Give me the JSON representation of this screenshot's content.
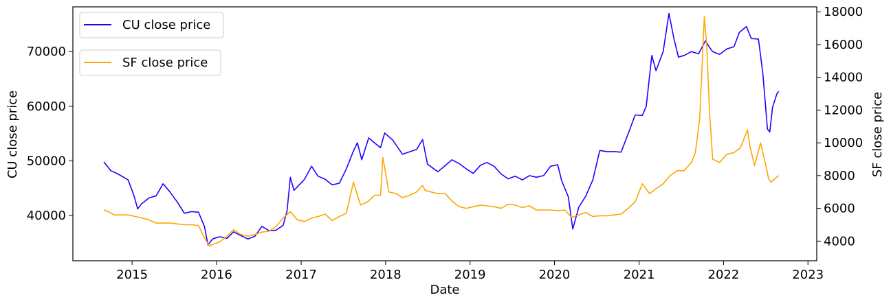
{
  "chart_data": {
    "type": "line",
    "xlabel": "Date",
    "ylabel_left": "CU close price",
    "ylabel_right": "SF close price",
    "x_range": [
      "2014-04-20",
      "2023-02-08"
    ],
    "ylim_left": [
      31700,
      78200
    ],
    "ylim_right": [
      2800,
      18300
    ],
    "x_ticks": [
      "2015",
      "2016",
      "2017",
      "2018",
      "2019",
      "2020",
      "2021",
      "2022",
      "2023"
    ],
    "y_ticks_left": [
      "40000",
      "50000",
      "60000",
      "70000"
    ],
    "y_ticks_right": [
      "4000",
      "6000",
      "8000",
      "10000",
      "12000",
      "14000",
      "16000",
      "18000"
    ],
    "legend_placement": "top-left",
    "grid": false,
    "series": [
      {
        "name": "CU close price",
        "axis": "left",
        "color": "#1f00ff",
        "points": [
          [
            "2014-09-01",
            49800
          ],
          [
            "2014-10-01",
            48200
          ],
          [
            "2014-11-01",
            47600
          ],
          [
            "2014-12-15",
            46500
          ],
          [
            "2015-01-10",
            43500
          ],
          [
            "2015-01-25",
            41200
          ],
          [
            "2015-02-10",
            42100
          ],
          [
            "2015-03-15",
            43200
          ],
          [
            "2015-04-15",
            43600
          ],
          [
            "2015-05-15",
            45800
          ],
          [
            "2015-06-10",
            44500
          ],
          [
            "2015-07-15",
            42500
          ],
          [
            "2015-08-15",
            40400
          ],
          [
            "2015-09-15",
            40700
          ],
          [
            "2015-10-15",
            40600
          ],
          [
            "2015-11-10",
            38000
          ],
          [
            "2015-11-25",
            34600
          ],
          [
            "2015-12-15",
            35700
          ],
          [
            "2016-01-15",
            36100
          ],
          [
            "2016-02-15",
            35800
          ],
          [
            "2016-03-15",
            37000
          ],
          [
            "2016-04-15",
            36300
          ],
          [
            "2016-05-15",
            35700
          ],
          [
            "2016-06-15",
            36200
          ],
          [
            "2016-07-15",
            38000
          ],
          [
            "2016-08-15",
            37200
          ],
          [
            "2016-09-15",
            37300
          ],
          [
            "2016-10-15",
            38200
          ],
          [
            "2016-11-01",
            40800
          ],
          [
            "2016-11-15",
            47000
          ],
          [
            "2016-12-01",
            44600
          ],
          [
            "2017-01-15",
            46600
          ],
          [
            "2017-02-15",
            49000
          ],
          [
            "2017-03-15",
            47200
          ],
          [
            "2017-04-15",
            46600
          ],
          [
            "2017-05-15",
            45600
          ],
          [
            "2017-06-15",
            45900
          ],
          [
            "2017-07-15",
            48500
          ],
          [
            "2017-08-15",
            51800
          ],
          [
            "2017-09-01",
            53300
          ],
          [
            "2017-09-20",
            50200
          ],
          [
            "2017-10-20",
            54200
          ],
          [
            "2017-11-20",
            53100
          ],
          [
            "2017-12-10",
            52400
          ],
          [
            "2017-12-28",
            55100
          ],
          [
            "2018-02-01",
            53800
          ],
          [
            "2018-03-15",
            51200
          ],
          [
            "2018-05-15",
            52100
          ],
          [
            "2018-06-10",
            53900
          ],
          [
            "2018-07-01",
            49400
          ],
          [
            "2018-08-15",
            48000
          ],
          [
            "2018-09-15",
            49100
          ],
          [
            "2018-10-15",
            50200
          ],
          [
            "2018-11-15",
            49500
          ],
          [
            "2018-12-20",
            48400
          ],
          [
            "2019-01-15",
            47700
          ],
          [
            "2019-02-15",
            49200
          ],
          [
            "2019-03-15",
            49700
          ],
          [
            "2019-04-15",
            49000
          ],
          [
            "2019-05-15",
            47600
          ],
          [
            "2019-06-15",
            46700
          ],
          [
            "2019-07-15",
            47200
          ],
          [
            "2019-08-15",
            46500
          ],
          [
            "2019-09-15",
            47300
          ],
          [
            "2019-10-15",
            47000
          ],
          [
            "2019-11-15",
            47300
          ],
          [
            "2019-12-15",
            49000
          ],
          [
            "2020-01-15",
            49300
          ],
          [
            "2020-02-01",
            46400
          ],
          [
            "2020-03-01",
            43400
          ],
          [
            "2020-03-20",
            37500
          ],
          [
            "2020-04-15",
            41500
          ],
          [
            "2020-05-15",
            43500
          ],
          [
            "2020-06-15",
            46500
          ],
          [
            "2020-07-15",
            51900
          ],
          [
            "2020-08-15",
            51700
          ],
          [
            "2020-09-15",
            51700
          ],
          [
            "2020-10-15",
            51600
          ],
          [
            "2020-11-15",
            55000
          ],
          [
            "2020-12-15",
            58400
          ],
          [
            "2021-01-15",
            58300
          ],
          [
            "2021-02-01",
            60000
          ],
          [
            "2021-02-25",
            69300
          ],
          [
            "2021-03-15",
            66500
          ],
          [
            "2021-04-15",
            70000
          ],
          [
            "2021-05-10",
            77000
          ],
          [
            "2021-06-01",
            72300
          ],
          [
            "2021-06-20",
            69000
          ],
          [
            "2021-07-15",
            69300
          ],
          [
            "2021-08-15",
            70000
          ],
          [
            "2021-09-15",
            69600
          ],
          [
            "2021-10-15",
            72000
          ],
          [
            "2021-11-01",
            70800
          ],
          [
            "2021-11-15",
            70000
          ],
          [
            "2021-12-15",
            69500
          ],
          [
            "2022-01-15",
            70500
          ],
          [
            "2022-02-15",
            70900
          ],
          [
            "2022-03-10",
            73500
          ],
          [
            "2022-04-10",
            74600
          ],
          [
            "2022-05-01",
            72400
          ],
          [
            "2022-06-01",
            72300
          ],
          [
            "2022-06-20",
            66000
          ],
          [
            "2022-07-10",
            55800
          ],
          [
            "2022-07-20",
            55300
          ],
          [
            "2022-08-01",
            59800
          ],
          [
            "2022-08-20",
            62300
          ],
          [
            "2022-08-28",
            62700
          ]
        ]
      },
      {
        "name": "SF close price",
        "axis": "right",
        "color": "#ffa500",
        "points": [
          [
            "2014-09-01",
            5900
          ],
          [
            "2014-09-20",
            5800
          ],
          [
            "2014-10-15",
            5600
          ],
          [
            "2014-11-15",
            5600
          ],
          [
            "2014-12-15",
            5600
          ],
          [
            "2015-01-15",
            5500
          ],
          [
            "2015-02-15",
            5400
          ],
          [
            "2015-03-15",
            5300
          ],
          [
            "2015-04-15",
            5100
          ],
          [
            "2015-05-15",
            5100
          ],
          [
            "2015-06-15",
            5100
          ],
          [
            "2015-07-15",
            5050
          ],
          [
            "2015-08-15",
            5000
          ],
          [
            "2015-09-15",
            5000
          ],
          [
            "2015-10-15",
            4950
          ],
          [
            "2015-11-10",
            4200
          ],
          [
            "2015-12-01",
            3700
          ],
          [
            "2015-12-15",
            3800
          ],
          [
            "2016-01-15",
            3950
          ],
          [
            "2016-02-15",
            4300
          ],
          [
            "2016-03-15",
            4700
          ],
          [
            "2016-04-15",
            4400
          ],
          [
            "2016-05-15",
            4300
          ],
          [
            "2016-06-15",
            4400
          ],
          [
            "2016-07-15",
            4550
          ],
          [
            "2016-08-15",
            4600
          ],
          [
            "2016-09-15",
            4900
          ],
          [
            "2016-10-15",
            5400
          ],
          [
            "2016-11-15",
            5800
          ],
          [
            "2016-12-15",
            5300
          ],
          [
            "2017-01-15",
            5200
          ],
          [
            "2017-02-15",
            5400
          ],
          [
            "2017-03-15",
            5500
          ],
          [
            "2017-04-15",
            5650
          ],
          [
            "2017-05-15",
            5250
          ],
          [
            "2017-06-15",
            5500
          ],
          [
            "2017-07-15",
            5700
          ],
          [
            "2017-08-15",
            7600
          ],
          [
            "2017-09-01",
            6800
          ],
          [
            "2017-09-15",
            6200
          ],
          [
            "2017-10-15",
            6400
          ],
          [
            "2017-11-15",
            6800
          ],
          [
            "2017-12-10",
            6800
          ],
          [
            "2017-12-20",
            9100
          ],
          [
            "2017-12-28",
            8500
          ],
          [
            "2018-01-15",
            7000
          ],
          [
            "2018-02-15",
            6900
          ],
          [
            "2018-03-15",
            6650
          ],
          [
            "2018-04-15",
            6800
          ],
          [
            "2018-05-15",
            7000
          ],
          [
            "2018-06-10",
            7400
          ],
          [
            "2018-06-20",
            7100
          ],
          [
            "2018-07-15",
            7000
          ],
          [
            "2018-08-15",
            6900
          ],
          [
            "2018-09-15",
            6900
          ],
          [
            "2018-10-15",
            6450
          ],
          [
            "2018-11-15",
            6100
          ],
          [
            "2018-12-15",
            6000
          ],
          [
            "2019-01-15",
            6100
          ],
          [
            "2019-02-15",
            6200
          ],
          [
            "2019-03-15",
            6150
          ],
          [
            "2019-04-15",
            6100
          ],
          [
            "2019-05-15",
            6000
          ],
          [
            "2019-06-15",
            6250
          ],
          [
            "2019-07-15",
            6200
          ],
          [
            "2019-08-15",
            6050
          ],
          [
            "2019-09-15",
            6150
          ],
          [
            "2019-10-15",
            5900
          ],
          [
            "2019-11-15",
            5900
          ],
          [
            "2019-12-15",
            5900
          ],
          [
            "2020-01-15",
            5850
          ],
          [
            "2020-02-15",
            5900
          ],
          [
            "2020-03-15",
            5450
          ],
          [
            "2020-04-15",
            5600
          ],
          [
            "2020-05-15",
            5750
          ],
          [
            "2020-06-15",
            5500
          ],
          [
            "2020-07-15",
            5550
          ],
          [
            "2020-08-15",
            5550
          ],
          [
            "2020-09-15",
            5600
          ],
          [
            "2020-10-15",
            5650
          ],
          [
            "2020-11-15",
            6000
          ],
          [
            "2020-12-15",
            6400
          ],
          [
            "2021-01-15",
            7500
          ],
          [
            "2021-02-15",
            6900
          ],
          [
            "2021-03-15",
            7200
          ],
          [
            "2021-04-15",
            7500
          ],
          [
            "2021-05-15",
            8000
          ],
          [
            "2021-06-15",
            8300
          ],
          [
            "2021-07-15",
            8300
          ],
          [
            "2021-08-15",
            8800
          ],
          [
            "2021-09-01",
            9400
          ],
          [
            "2021-09-20",
            11500
          ],
          [
            "2021-10-01",
            15000
          ],
          [
            "2021-10-10",
            17700
          ],
          [
            "2021-10-20",
            16000
          ],
          [
            "2021-11-01",
            12000
          ],
          [
            "2021-11-15",
            9000
          ],
          [
            "2021-12-15",
            8800
          ],
          [
            "2022-01-15",
            9300
          ],
          [
            "2022-02-15",
            9400
          ],
          [
            "2022-03-15",
            9700
          ],
          [
            "2022-04-15",
            10800
          ],
          [
            "2022-04-25",
            9800
          ],
          [
            "2022-05-15",
            8600
          ],
          [
            "2022-06-10",
            10000
          ],
          [
            "2022-06-30",
            8800
          ],
          [
            "2022-07-15",
            7800
          ],
          [
            "2022-07-25",
            7600
          ],
          [
            "2022-08-10",
            7800
          ],
          [
            "2022-08-28",
            8000
          ]
        ]
      }
    ]
  }
}
